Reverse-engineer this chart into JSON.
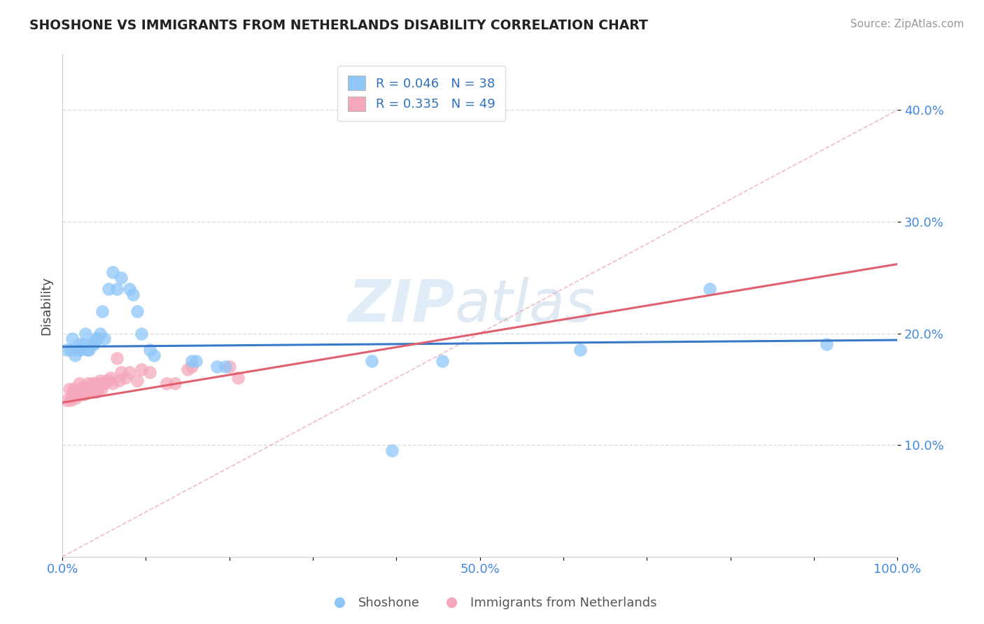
{
  "title": "SHOSHONE VS IMMIGRANTS FROM NETHERLANDS DISABILITY CORRELATION CHART",
  "source": "Source: ZipAtlas.com",
  "ylabel": "Disability",
  "xlim": [
    0.0,
    1.0
  ],
  "ylim": [
    0.0,
    0.45
  ],
  "xticks": [
    0.0,
    0.1,
    0.2,
    0.3,
    0.4,
    0.5,
    0.6,
    0.7,
    0.8,
    0.9,
    1.0
  ],
  "yticks": [
    0.1,
    0.2,
    0.3,
    0.4
  ],
  "ytick_labels_right": [
    "10.0%",
    "20.0%",
    "30.0%",
    "40.0%"
  ],
  "xtick_labels": [
    "0.0%",
    "",
    "",
    "",
    "",
    "50.0%",
    "",
    "",
    "",
    "",
    "100.0%"
  ],
  "legend1_label": "Shoshone",
  "legend2_label": "Immigrants from Netherlands",
  "blue_R": "0.046",
  "blue_N": "38",
  "pink_R": "0.335",
  "pink_N": "49",
  "blue_color": "#8ec6f8",
  "pink_color": "#f5a8bc",
  "blue_line_color": "#3878c8",
  "pink_line_color": "#e06070",
  "blue_scatter_x": [
    0.005,
    0.01,
    0.012,
    0.015,
    0.018,
    0.02,
    0.022,
    0.025,
    0.028,
    0.03,
    0.032,
    0.035,
    0.038,
    0.04,
    0.042,
    0.045,
    0.048,
    0.05,
    0.055,
    0.06,
    0.065,
    0.07,
    0.08,
    0.085,
    0.09,
    0.095,
    0.105,
    0.11,
    0.155,
    0.16,
    0.185,
    0.195,
    0.37,
    0.395,
    0.455,
    0.62,
    0.775,
    0.915
  ],
  "blue_scatter_y": [
    0.185,
    0.185,
    0.195,
    0.18,
    0.185,
    0.19,
    0.185,
    0.19,
    0.2,
    0.185,
    0.185,
    0.19,
    0.19,
    0.195,
    0.195,
    0.2,
    0.22,
    0.195,
    0.24,
    0.255,
    0.24,
    0.25,
    0.24,
    0.235,
    0.22,
    0.2,
    0.185,
    0.18,
    0.175,
    0.175,
    0.17,
    0.17,
    0.175,
    0.095,
    0.175,
    0.185,
    0.24,
    0.19
  ],
  "pink_scatter_x": [
    0.005,
    0.008,
    0.01,
    0.012,
    0.013,
    0.015,
    0.016,
    0.017,
    0.018,
    0.02,
    0.021,
    0.022,
    0.023,
    0.025,
    0.026,
    0.027,
    0.028,
    0.03,
    0.032,
    0.033,
    0.035,
    0.036,
    0.037,
    0.038,
    0.04,
    0.042,
    0.043,
    0.045,
    0.047,
    0.048,
    0.05,
    0.052,
    0.055,
    0.058,
    0.06,
    0.065,
    0.068,
    0.07,
    0.075,
    0.08,
    0.09,
    0.095,
    0.105,
    0.125,
    0.135,
    0.15,
    0.155,
    0.2,
    0.21
  ],
  "pink_scatter_y": [
    0.14,
    0.15,
    0.14,
    0.145,
    0.15,
    0.148,
    0.142,
    0.148,
    0.145,
    0.155,
    0.145,
    0.148,
    0.15,
    0.152,
    0.145,
    0.15,
    0.148,
    0.155,
    0.148,
    0.15,
    0.15,
    0.155,
    0.148,
    0.155,
    0.148,
    0.155,
    0.15,
    0.158,
    0.15,
    0.155,
    0.155,
    0.158,
    0.158,
    0.16,
    0.155,
    0.178,
    0.158,
    0.165,
    0.16,
    0.165,
    0.158,
    0.168,
    0.165,
    0.155,
    0.155,
    0.168,
    0.17,
    0.17,
    0.16
  ],
  "blue_line_x0": 0.0,
  "blue_line_x1": 1.0,
  "blue_line_y0": 0.188,
  "blue_line_y1": 0.194,
  "pink_line_x0": 0.0,
  "pink_line_x1": 1.0,
  "pink_line_y0": 0.138,
  "pink_line_y1": 0.262
}
